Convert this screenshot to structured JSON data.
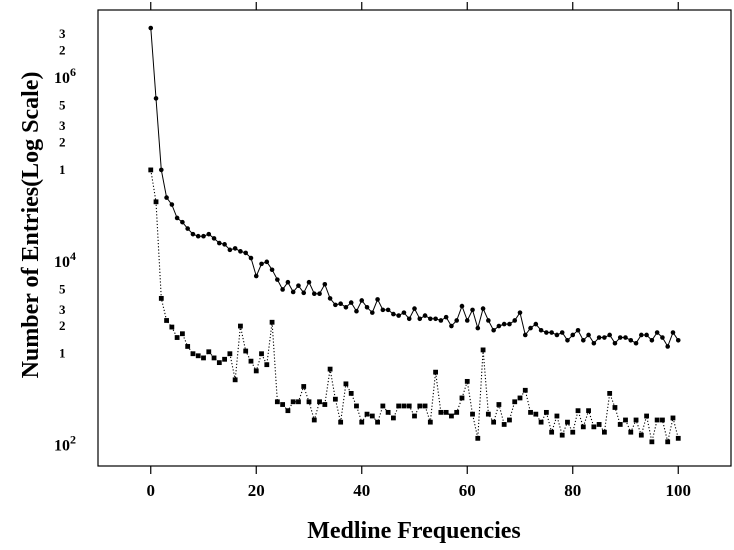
{
  "chart_data": {
    "type": "line",
    "xlabel": "Medline Frequencies",
    "ylabel": "Number of  Entries(Log Scale)",
    "y_scale": "log",
    "xlim": [
      -10,
      110
    ],
    "ylim": [
      60,
      5500000
    ],
    "x_ticks": [
      0,
      20,
      40,
      60,
      80,
      100
    ],
    "x_tick_labels": [
      "0",
      "20",
      "40",
      "60",
      "80",
      "100"
    ],
    "y_tick_labels": [
      {
        "base": "10",
        "exp": "2",
        "value": 100
      },
      {
        "base": "1",
        "exp": "",
        "value": 1000
      },
      {
        "base": "2",
        "exp": "",
        "value": 2000
      },
      {
        "base": "3",
        "exp": "",
        "value": 3000
      },
      {
        "base": "5",
        "exp": "",
        "value": 5000
      },
      {
        "base": "10",
        "exp": "4",
        "value": 10000
      },
      {
        "base": "1",
        "exp": "",
        "value": 100000
      },
      {
        "base": "2",
        "exp": "",
        "value": 200000
      },
      {
        "base": "3",
        "exp": "",
        "value": 300000
      },
      {
        "base": "5",
        "exp": "",
        "value": 500000
      },
      {
        "base": "10",
        "exp": "6",
        "value": 1000000
      },
      {
        "base": "2",
        "exp": "",
        "value": 2000000
      },
      {
        "base": "3",
        "exp": "",
        "value": 3000000
      }
    ],
    "series": [
      {
        "marker": "circle",
        "line_style": "solid",
        "x": [
          0,
          1,
          2,
          3,
          4,
          5,
          6,
          7,
          8,
          9,
          10,
          11,
          12,
          13,
          14,
          15,
          16,
          17,
          18,
          19,
          20,
          21,
          22,
          23,
          24,
          25,
          26,
          27,
          28,
          29,
          30,
          31,
          32,
          33,
          34,
          35,
          36,
          37,
          38,
          39,
          40,
          41,
          42,
          43,
          44,
          45,
          46,
          47,
          48,
          49,
          50,
          51,
          52,
          53,
          54,
          55,
          56,
          57,
          58,
          59,
          60,
          61,
          62,
          63,
          64,
          65,
          66,
          67,
          68,
          69,
          70,
          71,
          72,
          73,
          74,
          75,
          76,
          77,
          78,
          79,
          80,
          81,
          82,
          83,
          84,
          85,
          86,
          87,
          88,
          89,
          90,
          91,
          92,
          93,
          94,
          95,
          96,
          97,
          98,
          99,
          100
        ],
        "values": [
          3500000,
          600000,
          100000,
          50000,
          42000,
          30000,
          27000,
          23000,
          20000,
          19000,
          19000,
          20000,
          18000,
          16000,
          15500,
          13500,
          14000,
          13000,
          12500,
          11000,
          7000,
          9500,
          10000,
          8200,
          6400,
          5000,
          6000,
          4700,
          5500,
          4600,
          6000,
          4500,
          4500,
          5700,
          4000,
          3400,
          3500,
          3200,
          3600,
          2900,
          3800,
          3200,
          2800,
          3900,
          3000,
          3000,
          2700,
          2600,
          2800,
          2400,
          3100,
          2400,
          2600,
          2400,
          2400,
          2300,
          2500,
          2000,
          2300,
          3300,
          2300,
          3000,
          1900,
          3100,
          2300,
          1800,
          2000,
          2100,
          2100,
          2300,
          2800,
          1600,
          1900,
          2100,
          1800,
          1700,
          1700,
          1600,
          1700,
          1400,
          1600,
          1800,
          1400,
          1600,
          1300,
          1500,
          1500,
          1600,
          1300,
          1500,
          1500,
          1400,
          1300,
          1600,
          1600,
          1400,
          1700,
          1500,
          1200,
          1700,
          1400
        ]
      },
      {
        "marker": "square",
        "line_style": "dotted",
        "x": [
          0,
          1,
          2,
          3,
          4,
          5,
          6,
          7,
          8,
          9,
          10,
          11,
          12,
          13,
          14,
          15,
          16,
          17,
          18,
          19,
          20,
          21,
          22,
          23,
          24,
          25,
          26,
          27,
          28,
          29,
          30,
          31,
          32,
          33,
          34,
          35,
          36,
          37,
          38,
          39,
          40,
          41,
          42,
          43,
          44,
          45,
          46,
          47,
          48,
          49,
          50,
          51,
          52,
          53,
          54,
          55,
          56,
          57,
          58,
          59,
          60,
          61,
          62,
          63,
          64,
          65,
          66,
          67,
          68,
          69,
          70,
          71,
          72,
          73,
          74,
          75,
          76,
          77,
          78,
          79,
          80,
          81,
          82,
          83,
          84,
          85,
          86,
          87,
          88,
          89,
          90,
          91,
          92,
          93,
          94,
          95,
          96,
          97,
          98,
          99,
          100
        ],
        "values": [
          100000,
          45000,
          4000,
          2300,
          1950,
          1500,
          1650,
          1200,
          1000,
          950,
          900,
          1050,
          900,
          800,
          870,
          1000,
          520,
          2000,
          1070,
          830,
          650,
          1000,
          760,
          2200,
          300,
          280,
          240,
          300,
          300,
          440,
          300,
          190,
          300,
          280,
          680,
          320,
          180,
          470,
          370,
          270,
          180,
          220,
          210,
          180,
          270,
          230,
          200,
          270,
          270,
          270,
          210,
          270,
          270,
          180,
          630,
          230,
          230,
          210,
          230,
          330,
          500,
          220,
          120,
          1100,
          220,
          180,
          280,
          170,
          190,
          300,
          330,
          400,
          230,
          220,
          180,
          230,
          140,
          210,
          130,
          180,
          140,
          240,
          160,
          240,
          160,
          170,
          140,
          370,
          260,
          170,
          190,
          140,
          190,
          130,
          210,
          110,
          190,
          190,
          110,
          200,
          120
        ]
      }
    ]
  }
}
